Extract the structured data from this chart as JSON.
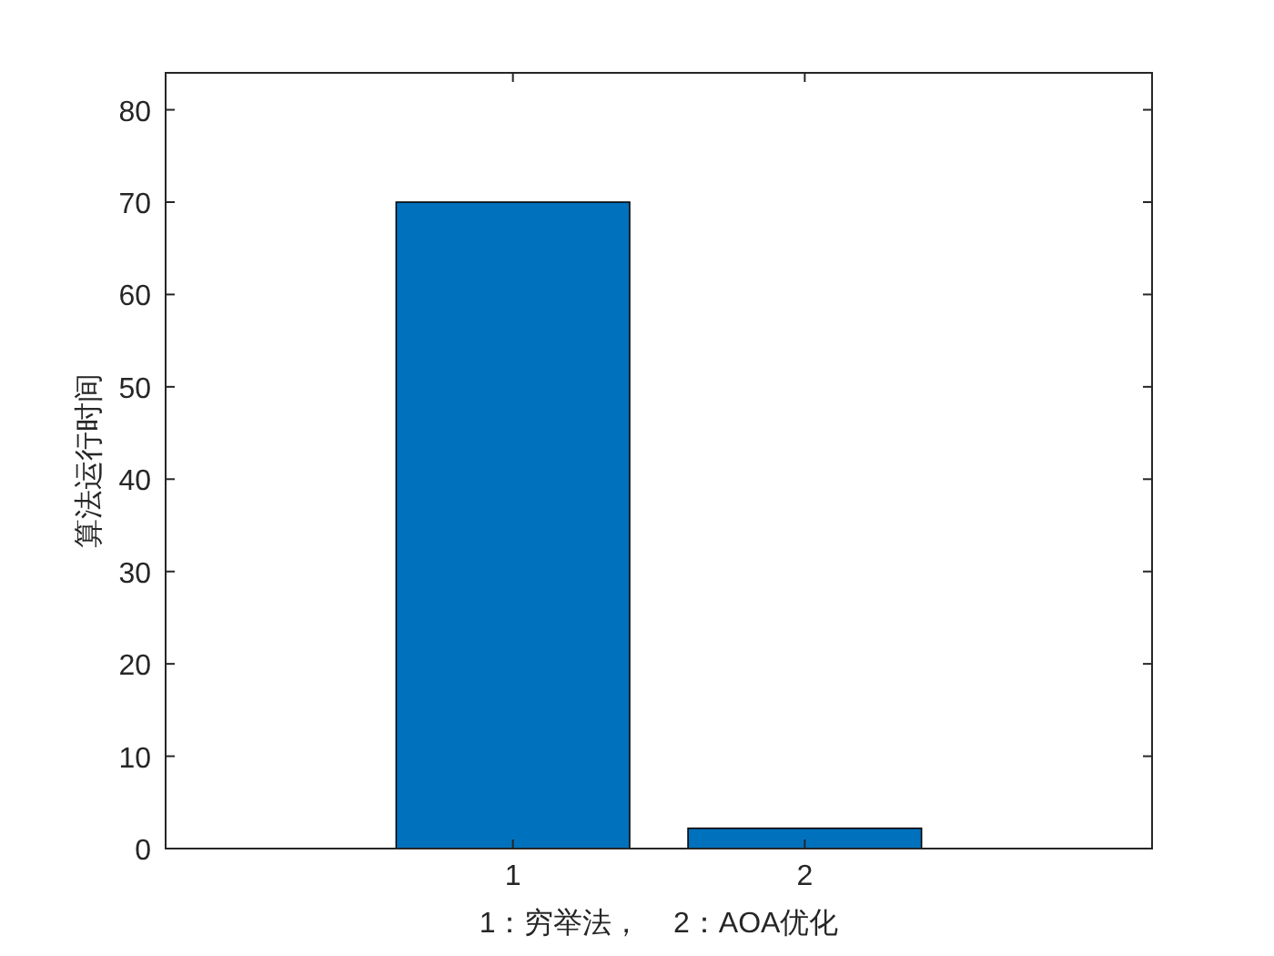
{
  "chart_data": {
    "type": "bar",
    "categories": [
      "1",
      "2"
    ],
    "values": [
      70,
      2.2
    ],
    "color": "#0072bd",
    "xlabel": "1：穷举法，    2：AOA优化",
    "ylabel": "算法运行时间",
    "ylim": [
      0,
      84
    ],
    "yticks": [
      0,
      10,
      20,
      30,
      40,
      50,
      60,
      70,
      80
    ]
  }
}
